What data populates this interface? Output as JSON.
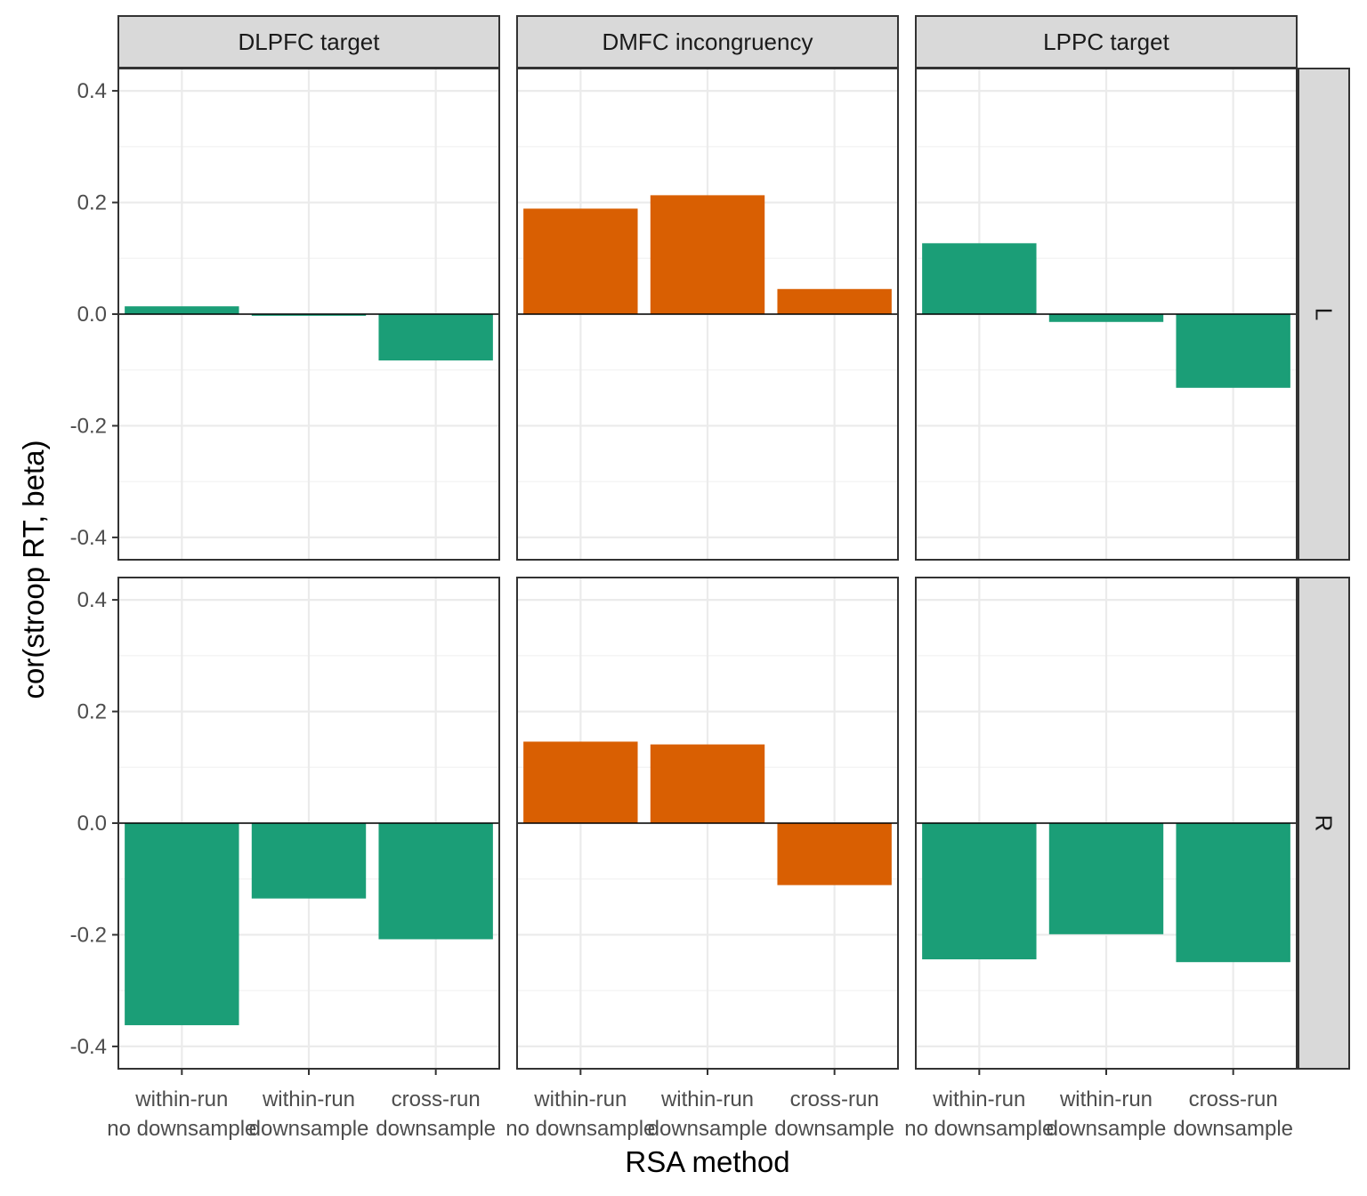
{
  "chart_data": {
    "type": "bar",
    "xlabel": "RSA method",
    "ylabel": "cor(stroop RT, beta)",
    "ylim": [
      -0.44,
      0.44
    ],
    "yticks": [
      "0.4",
      "0.2",
      "0.0",
      "-0.2",
      "-0.4"
    ],
    "ytick_values": [
      0.4,
      0.2,
      0.0,
      -0.2,
      -0.4
    ],
    "categories": [
      [
        "within-run",
        "no downsample"
      ],
      [
        "within-run",
        "downsample"
      ],
      [
        "cross-run",
        "downsample"
      ]
    ],
    "columns": [
      "DLPFC target",
      "DMFC incongruency",
      "LPPC target"
    ],
    "rows": [
      "L",
      "R"
    ],
    "column_colors": [
      "#1b9e77",
      "#d95f02",
      "#1b9e77"
    ],
    "grid": true,
    "legend": "none",
    "panels": [
      {
        "row": "L",
        "column": "DLPFC target",
        "values": [
          0.014,
          -0.003,
          -0.083
        ]
      },
      {
        "row": "L",
        "column": "DMFC incongruency",
        "values": [
          0.189,
          0.213,
          0.045
        ]
      },
      {
        "row": "L",
        "column": "LPPC target",
        "values": [
          0.127,
          -0.014,
          -0.132
        ]
      },
      {
        "row": "R",
        "column": "DLPFC target",
        "values": [
          -0.362,
          -0.135,
          -0.208
        ]
      },
      {
        "row": "R",
        "column": "DMFC incongruency",
        "values": [
          0.146,
          0.141,
          -0.111
        ]
      },
      {
        "row": "R",
        "column": "LPPC target",
        "values": [
          -0.244,
          -0.199,
          -0.249
        ]
      }
    ]
  }
}
